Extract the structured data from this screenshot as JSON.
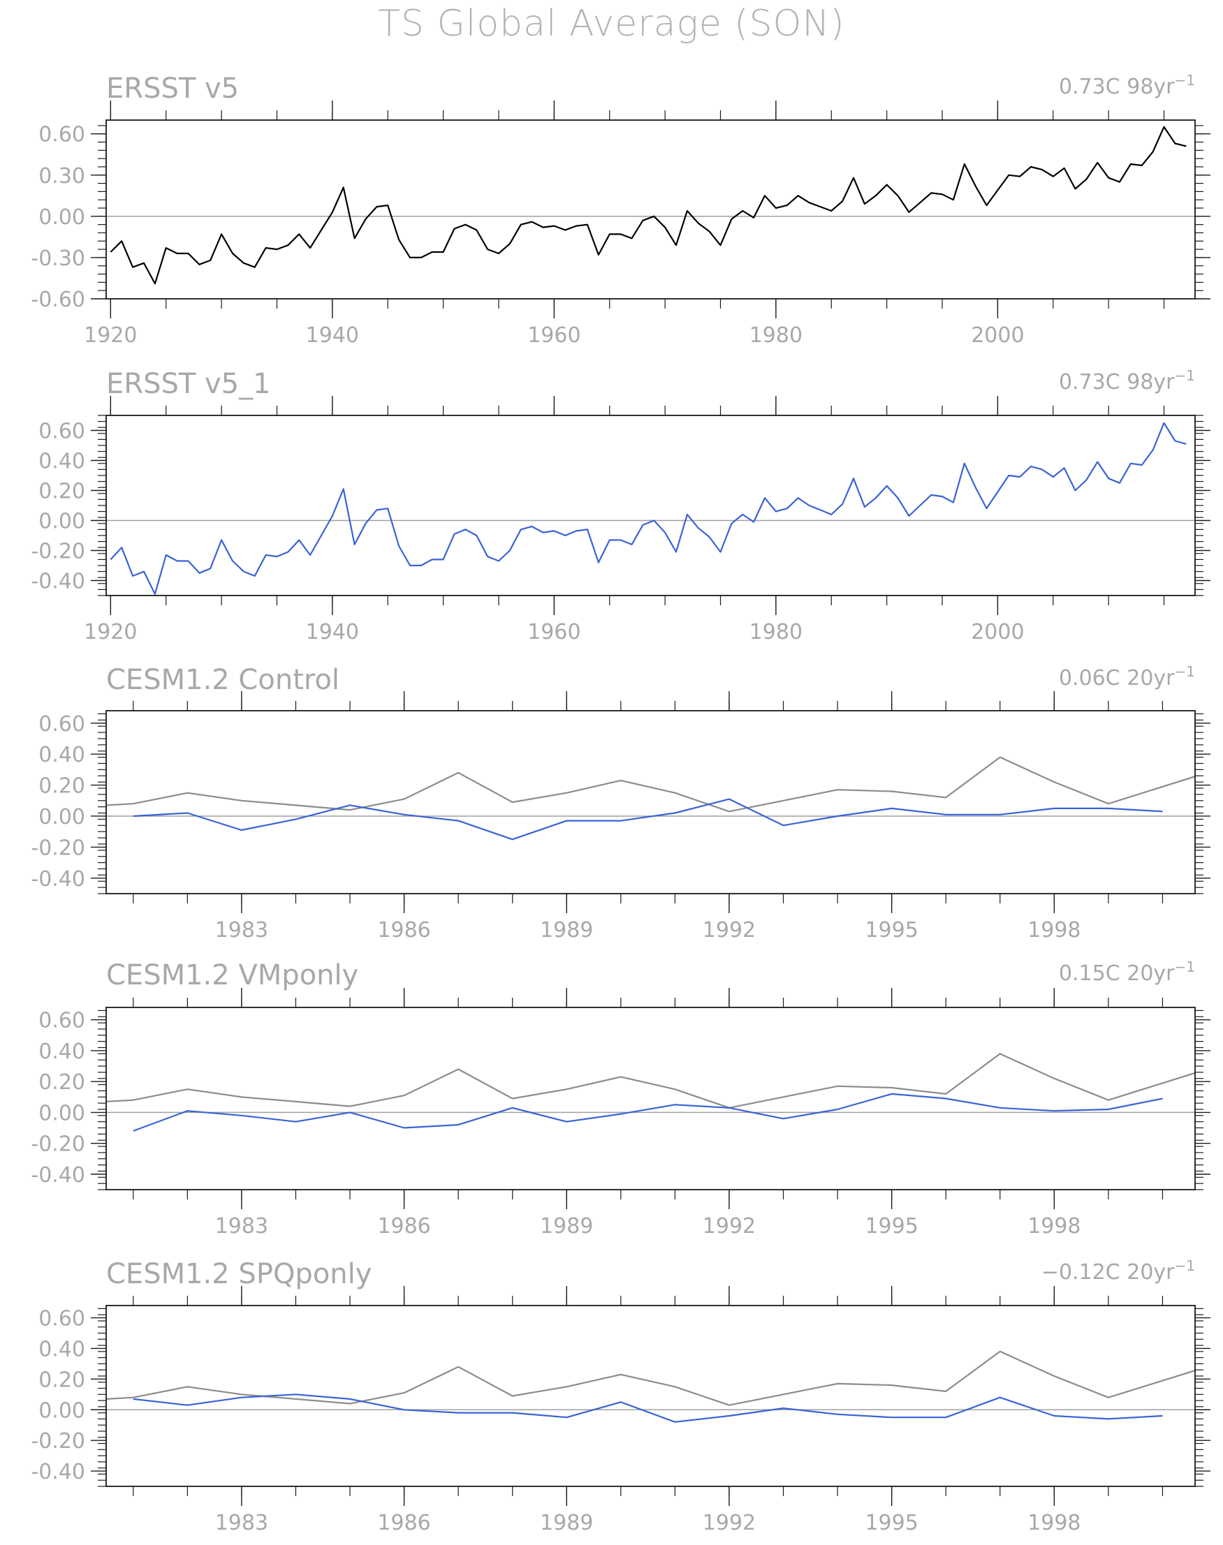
{
  "title": "TS Global Average (SON)",
  "colors": {
    "obs": "#000000",
    "model": "#3a62d6",
    "reference": "#8c8c8c",
    "zero": "#a0a0a0",
    "frame": "#1a1a1a",
    "text": "#a8a8a8"
  },
  "chart_data": [
    {
      "type": "line",
      "title": "ERSST v5",
      "trend_text": "0.73C 98yr",
      "trend_exponent": "−1",
      "xlim": [
        1919.6,
        2017.8
      ],
      "ylim": [
        -0.6,
        0.7
      ],
      "yticks": [
        0.6,
        0.3,
        0.0,
        -0.3,
        -0.6
      ],
      "yticklabels": [
        "0.60",
        "0.30",
        "0.00",
        "-0.30",
        "-0.60"
      ],
      "xticks": [
        1920,
        1940,
        1960,
        1980,
        2000
      ],
      "xticklabels": [
        "1920",
        "1940",
        "1960",
        "1980",
        "2000"
      ],
      "series": [
        {
          "color": "#000000",
          "x_start": 1920,
          "values": [
            -0.26,
            -0.18,
            -0.37,
            -0.34,
            -0.49,
            -0.23,
            -0.27,
            -0.27,
            -0.35,
            -0.32,
            -0.13,
            -0.27,
            -0.34,
            -0.37,
            -0.23,
            -0.24,
            -0.21,
            -0.13,
            -0.23,
            -0.1,
            0.03,
            0.21,
            -0.16,
            -0.02,
            0.07,
            0.08,
            -0.17,
            -0.3,
            -0.3,
            -0.26,
            -0.26,
            -0.09,
            -0.06,
            -0.1,
            -0.24,
            -0.27,
            -0.2,
            -0.06,
            -0.04,
            -0.08,
            -0.07,
            -0.1,
            -0.07,
            -0.06,
            -0.28,
            -0.13,
            -0.13,
            -0.16,
            -0.03,
            0.0,
            -0.08,
            -0.21,
            0.04,
            -0.05,
            -0.11,
            -0.21,
            -0.02,
            0.04,
            -0.01,
            0.15,
            0.06,
            0.08,
            0.15,
            0.1,
            0.07,
            0.04,
            0.11,
            0.28,
            0.09,
            0.15,
            0.23,
            0.15,
            0.03,
            0.1,
            0.17,
            0.16,
            0.12,
            0.38,
            0.22,
            0.08,
            0.19,
            0.3,
            0.29,
            0.36,
            0.34,
            0.29,
            0.35,
            0.2,
            0.27,
            0.39,
            0.28,
            0.25,
            0.38,
            0.37,
            0.47,
            0.65,
            0.53,
            0.51
          ]
        }
      ]
    },
    {
      "type": "line",
      "title": "ERSST v5_1",
      "trend_text": "0.73C 98yr",
      "trend_exponent": "−1",
      "xlim": [
        1919.6,
        2017.8
      ],
      "ylim": [
        -0.5,
        0.7
      ],
      "yticks": [
        0.6,
        0.4,
        0.2,
        0.0,
        -0.2,
        -0.4
      ],
      "yticklabels": [
        "0.60",
        "0.40",
        "0.20",
        "0.00",
        "-0.20",
        "-0.40"
      ],
      "xticks": [
        1920,
        1940,
        1960,
        1980,
        2000
      ],
      "xticklabels": [
        "1920",
        "1940",
        "1960",
        "1980",
        "2000"
      ],
      "series": [
        {
          "color": "#3a62d6",
          "x_start": 1920,
          "values": [
            -0.26,
            -0.18,
            -0.37,
            -0.34,
            -0.49,
            -0.23,
            -0.27,
            -0.27,
            -0.35,
            -0.32,
            -0.13,
            -0.27,
            -0.34,
            -0.37,
            -0.23,
            -0.24,
            -0.21,
            -0.13,
            -0.23,
            -0.1,
            0.03,
            0.21,
            -0.16,
            -0.02,
            0.07,
            0.08,
            -0.17,
            -0.3,
            -0.3,
            -0.26,
            -0.26,
            -0.09,
            -0.06,
            -0.1,
            -0.24,
            -0.27,
            -0.2,
            -0.06,
            -0.04,
            -0.08,
            -0.07,
            -0.1,
            -0.07,
            -0.06,
            -0.28,
            -0.13,
            -0.13,
            -0.16,
            -0.03,
            0.0,
            -0.08,
            -0.21,
            0.04,
            -0.05,
            -0.11,
            -0.21,
            -0.02,
            0.04,
            -0.01,
            0.15,
            0.06,
            0.08,
            0.15,
            0.1,
            0.07,
            0.04,
            0.11,
            0.28,
            0.09,
            0.15,
            0.23,
            0.15,
            0.03,
            0.1,
            0.17,
            0.16,
            0.12,
            0.38,
            0.22,
            0.08,
            0.19,
            0.3,
            0.29,
            0.36,
            0.34,
            0.29,
            0.35,
            0.2,
            0.27,
            0.39,
            0.28,
            0.25,
            0.38,
            0.37,
            0.47,
            0.65,
            0.53,
            0.51
          ]
        }
      ]
    },
    {
      "type": "line",
      "title": "CESM1.2 Control",
      "trend_text": "0.06C 20yr",
      "trend_exponent": "−1",
      "xlim": [
        1980.5,
        2000.6
      ],
      "ylim": [
        -0.5,
        0.68
      ],
      "yticks": [
        0.6,
        0.4,
        0.2,
        0.0,
        -0.2,
        -0.4
      ],
      "yticklabels": [
        "0.60",
        "0.40",
        "0.20",
        "0.00",
        "-0.20",
        "-0.40"
      ],
      "xticks": [
        1983,
        1986,
        1989,
        1992,
        1995,
        1998
      ],
      "xticklabels": [
        "1983",
        "1986",
        "1989",
        "1992",
        "1995",
        "1998"
      ],
      "series": [
        {
          "color": "#8c8c8c",
          "x_start": 1980,
          "values": [
            0.06,
            0.08,
            0.15,
            0.1,
            0.07,
            0.04,
            0.11,
            0.28,
            0.09,
            0.15,
            0.23,
            0.15,
            0.03,
            0.1,
            0.17,
            0.16,
            0.12,
            0.38,
            0.22,
            0.08,
            0.19,
            0.3
          ]
        },
        {
          "color": "#3a62d6",
          "x_start": 1981,
          "values": [
            0.0,
            0.02,
            -0.09,
            -0.02,
            0.07,
            0.01,
            -0.03,
            -0.15,
            -0.03,
            -0.03,
            0.02,
            0.11,
            -0.06,
            0.0,
            0.05,
            0.01,
            0.01,
            0.05,
            0.05,
            0.03
          ]
        }
      ]
    },
    {
      "type": "line",
      "title": "CESM1.2 VMponly",
      "trend_text": "0.15C 20yr",
      "trend_exponent": "−1",
      "xlim": [
        1980.5,
        2000.6
      ],
      "ylim": [
        -0.5,
        0.68
      ],
      "yticks": [
        0.6,
        0.4,
        0.2,
        0.0,
        -0.2,
        -0.4
      ],
      "yticklabels": [
        "0.60",
        "0.40",
        "0.20",
        "0.00",
        "-0.20",
        "-0.40"
      ],
      "xticks": [
        1983,
        1986,
        1989,
        1992,
        1995,
        1998
      ],
      "xticklabels": [
        "1983",
        "1986",
        "1989",
        "1992",
        "1995",
        "1998"
      ],
      "series": [
        {
          "color": "#8c8c8c",
          "x_start": 1980,
          "values": [
            0.06,
            0.08,
            0.15,
            0.1,
            0.07,
            0.04,
            0.11,
            0.28,
            0.09,
            0.15,
            0.23,
            0.15,
            0.03,
            0.1,
            0.17,
            0.16,
            0.12,
            0.38,
            0.22,
            0.08,
            0.19,
            0.3
          ]
        },
        {
          "color": "#3a62d6",
          "x_start": 1981,
          "values": [
            -0.12,
            0.01,
            -0.02,
            -0.06,
            0.0,
            -0.1,
            -0.08,
            0.03,
            -0.06,
            -0.01,
            0.05,
            0.03,
            -0.04,
            0.02,
            0.12,
            0.09,
            0.03,
            0.01,
            0.02,
            0.09
          ]
        }
      ]
    },
    {
      "type": "line",
      "title": "CESM1.2 SPQponly",
      "trend_text": "−0.12C 20yr",
      "trend_exponent": "−1",
      "xlim": [
        1980.5,
        2000.6
      ],
      "ylim": [
        -0.5,
        0.68
      ],
      "yticks": [
        0.6,
        0.4,
        0.2,
        0.0,
        -0.2,
        -0.4
      ],
      "yticklabels": [
        "0.60",
        "0.40",
        "0.20",
        "0.00",
        "-0.20",
        "-0.40"
      ],
      "xticks": [
        1983,
        1986,
        1989,
        1992,
        1995,
        1998
      ],
      "xticklabels": [
        "1983",
        "1986",
        "1989",
        "1992",
        "1995",
        "1998"
      ],
      "series": [
        {
          "color": "#8c8c8c",
          "x_start": 1980,
          "values": [
            0.06,
            0.08,
            0.15,
            0.1,
            0.07,
            0.04,
            0.11,
            0.28,
            0.09,
            0.15,
            0.23,
            0.15,
            0.03,
            0.1,
            0.17,
            0.16,
            0.12,
            0.38,
            0.22,
            0.08,
            0.19,
            0.3
          ]
        },
        {
          "color": "#3a62d6",
          "x_start": 1981,
          "values": [
            0.07,
            0.03,
            0.08,
            0.1,
            0.07,
            0.0,
            -0.02,
            -0.02,
            -0.05,
            0.05,
            -0.08,
            -0.04,
            0.01,
            -0.03,
            -0.05,
            -0.05,
            0.08,
            -0.04,
            -0.06,
            -0.04
          ]
        }
      ]
    }
  ]
}
